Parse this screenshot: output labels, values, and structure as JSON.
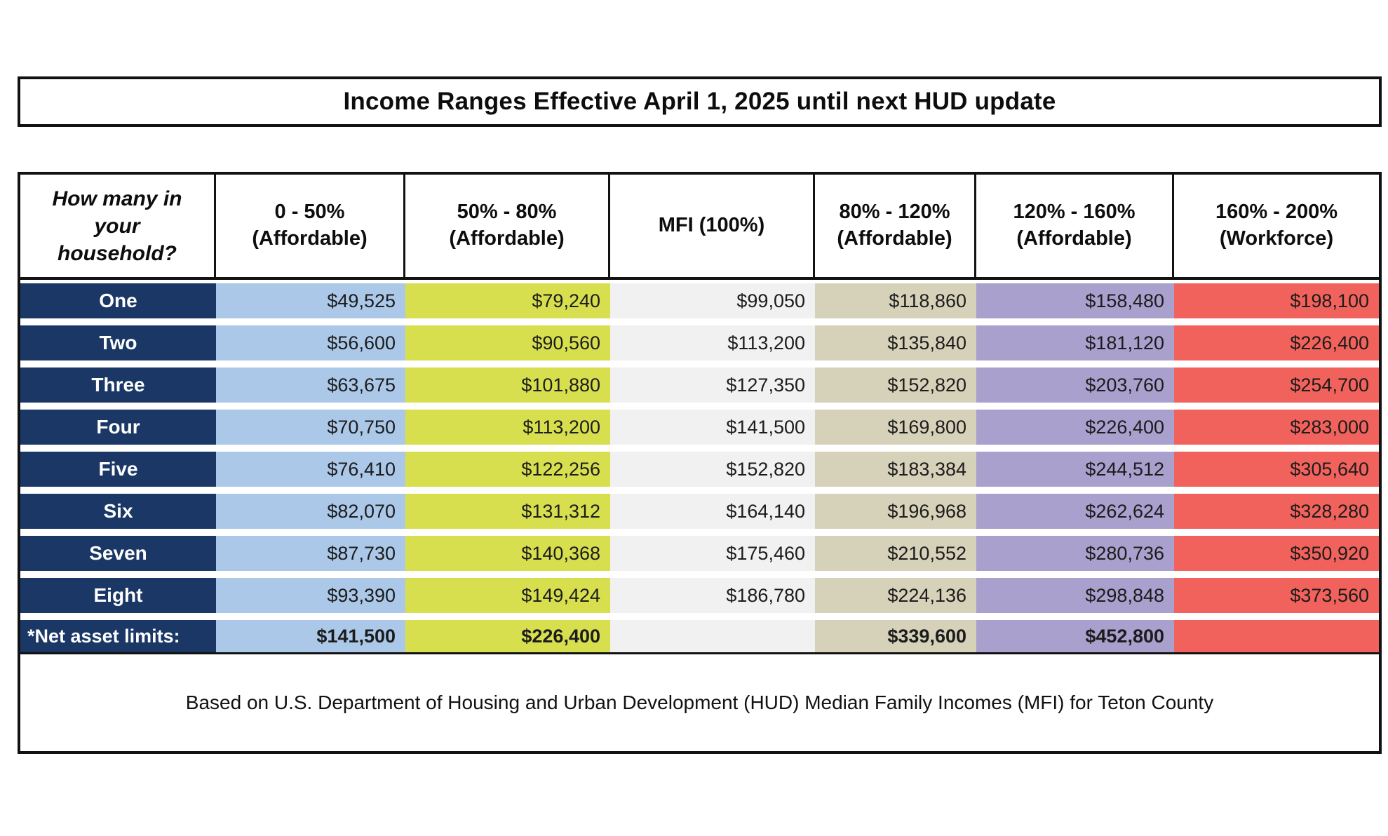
{
  "title": "Income Ranges Effective April 1, 2025 until next HUD update",
  "colors": {
    "navy_label": "#1a3766",
    "col_0_50": "#abc8e8",
    "col_50_80": "#d8df4e",
    "col_mfi": "#f1f1f2",
    "col_80_120": "#d6d1b9",
    "col_120_160": "#a9a0cd",
    "col_160_200": "#f2625c"
  },
  "table": {
    "header": {
      "household_lines": [
        "How many in",
        "your",
        "household?"
      ],
      "columns": [
        {
          "range": "0 - 50%",
          "label": "(Affordable)"
        },
        {
          "range": "50% - 80%",
          "label": "(Affordable)"
        },
        {
          "range": "MFI (100%)",
          "label": ""
        },
        {
          "range": "80% - 120%",
          "label": "(Affordable)"
        },
        {
          "range": "120% - 160%",
          "label": "(Affordable)"
        },
        {
          "range": "160% - 200%",
          "label": "(Workforce)"
        }
      ]
    },
    "rows": [
      {
        "label": "One",
        "values": [
          "$49,525",
          "$79,240",
          "$99,050",
          "$118,860",
          "$158,480",
          "$198,100"
        ]
      },
      {
        "label": "Two",
        "values": [
          "$56,600",
          "$90,560",
          "$113,200",
          "$135,840",
          "$181,120",
          "$226,400"
        ]
      },
      {
        "label": "Three",
        "values": [
          "$63,675",
          "$101,880",
          "$127,350",
          "$152,820",
          "$203,760",
          "$254,700"
        ]
      },
      {
        "label": "Four",
        "values": [
          "$70,750",
          "$113,200",
          "$141,500",
          "$169,800",
          "$226,400",
          "$283,000"
        ]
      },
      {
        "label": "Five",
        "values": [
          "$76,410",
          "$122,256",
          "$152,820",
          "$183,384",
          "$244,512",
          "$305,640"
        ]
      },
      {
        "label": "Six",
        "values": [
          "$82,070",
          "$131,312",
          "$164,140",
          "$196,968",
          "$262,624",
          "$328,280"
        ]
      },
      {
        "label": "Seven",
        "values": [
          "$87,730",
          "$140,368",
          "$175,460",
          "$210,552",
          "$280,736",
          "$350,920"
        ]
      },
      {
        "label": "Eight",
        "values": [
          "$93,390",
          "$149,424",
          "$186,780",
          "$224,136",
          "$298,848",
          "$373,560"
        ]
      }
    ],
    "net_asset_row": {
      "label": "*Net asset limits:",
      "values": [
        "$141,500",
        "$226,400",
        "",
        "$339,600",
        "$452,800",
        ""
      ]
    }
  },
  "footer": {
    "note": "Based on U.S. Department of Housing and Urban Development (HUD) Median Family Incomes (MFI) for Teton County"
  }
}
